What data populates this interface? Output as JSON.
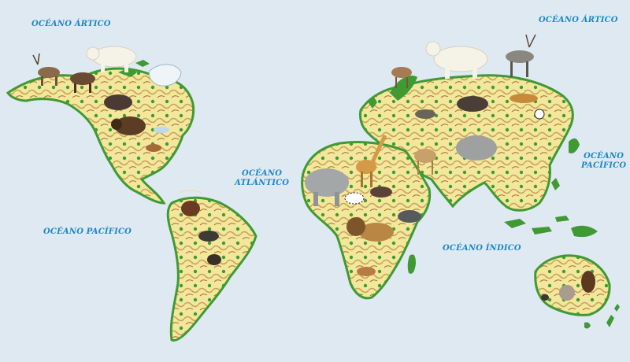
{
  "map": {
    "colors": {
      "ocean": "#dfe9f2",
      "land_green": "#3f9a34",
      "land_yellow": "#f2e79a",
      "land_tan": "#c9a25e",
      "mountain_brown": "#a5672e",
      "ice": "#eef4f8",
      "label_blue": "#1b86c6"
    },
    "ocean_labels": {
      "arctic_west": "OCÉANO ÁRTICO",
      "arctic_east": "OCÉANO ÁRTICO",
      "atlantic_line1": "OCÉANO",
      "atlantic_line2": "ATLÁNTICO",
      "pacific_west": "OCÉANO PACÍFICO",
      "pacific_east_line1": "OCÉANO",
      "pacific_east_line2": "PACÍFICO",
      "indian": "OCÉANO ÍNDICO"
    },
    "animals": [
      "reindeer",
      "moose",
      "polar-bear",
      "wolf",
      "bison",
      "brown-bear",
      "coyote",
      "raccoon",
      "ox",
      "tapir",
      "monkey",
      "deer",
      "camel",
      "elephant",
      "giraffe",
      "zebra",
      "lion",
      "rhinoceros",
      "antelope",
      "hippopotamus",
      "tiger",
      "yak",
      "panda",
      "kangaroo",
      "koala",
      "rabbit"
    ]
  }
}
